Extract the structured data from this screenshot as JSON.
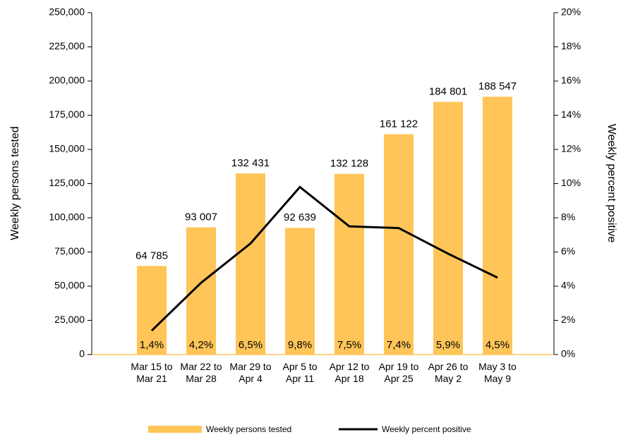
{
  "chart_data": {
    "type": "bar",
    "categories": [
      "Mar 15 to Mar 21",
      "Mar 22 to Mar 28",
      "Mar 29 to Apr 4",
      "Apr 5 to Apr 11",
      "Apr 12 to Apr 18",
      "Apr 19 to Apr 25",
      "Apr 26 to May 2",
      "May 3 to May 9"
    ],
    "series": [
      {
        "name": "Weekly persons tested",
        "type": "bar",
        "color": "#ffc558",
        "values": [
          64785,
          93007,
          132431,
          92639,
          132128,
          161122,
          184801,
          188547
        ],
        "value_labels": [
          "64 785",
          "93 007",
          "132 431",
          "92 639",
          "132 128",
          "161 122",
          "184 801",
          "188 547"
        ]
      },
      {
        "name": "Weekly percent positive",
        "type": "line",
        "axis": "y2",
        "color": "#000000",
        "values": [
          1.4,
          4.2,
          6.5,
          9.8,
          7.5,
          7.4,
          5.9,
          4.5
        ],
        "value_labels": [
          "1,4%",
          "4,2%",
          "6,5%",
          "9,8%",
          "7,5%",
          "7,4%",
          "5,9%",
          "4,5%"
        ]
      }
    ],
    "ylabel": "Weekly persons tested",
    "y2label": "Weekly percent positive",
    "ylim": [
      0,
      250000
    ],
    "yticks": [
      0,
      {
        "value": 25000,
        "label": "25,000"
      },
      {
        "value": 50000,
        "label": "50,000"
      },
      {
        "value": 75000,
        "label": "75,000"
      },
      {
        "value": 100000,
        "label": "100,000"
      },
      {
        "value": 125000,
        "label": "125,000"
      },
      {
        "value": 150000,
        "label": "150,000"
      },
      {
        "value": 175000,
        "label": "175,000"
      },
      {
        "value": 200000,
        "label": "200,000"
      },
      {
        "value": 225000,
        "label": "225,000"
      },
      {
        "value": 250000,
        "label": "250,000"
      }
    ],
    "y2lim": [
      0,
      20
    ],
    "y2ticks": [
      {
        "value": 0,
        "label": "0%"
      },
      {
        "value": 2,
        "label": "2%"
      },
      {
        "value": 4,
        "label": "4%"
      },
      {
        "value": 6,
        "label": "6%"
      },
      {
        "value": 8,
        "label": "8%"
      },
      {
        "value": 10,
        "label": "10%"
      },
      {
        "value": 12,
        "label": "12%"
      },
      {
        "value": 14,
        "label": "14%"
      },
      {
        "value": 16,
        "label": "16%"
      },
      {
        "value": 18,
        "label": "18%"
      },
      {
        "value": 20,
        "label": "20%"
      }
    ],
    "legend": "bottom"
  }
}
